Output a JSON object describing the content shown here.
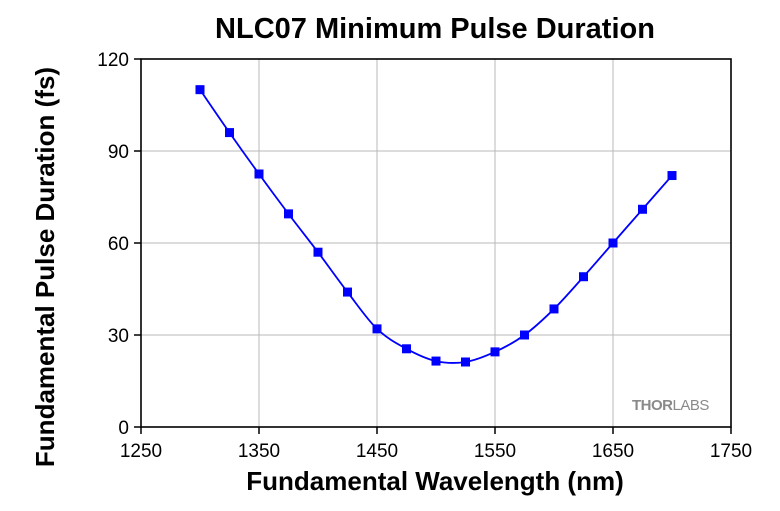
{
  "chart_data": {
    "type": "line",
    "title": "NLC07 Minimum Pulse Duration",
    "xlabel": "Fundamental Wavelength (nm)",
    "ylabel": "Fundamental Pulse Duration (fs)",
    "xlim": [
      1250,
      1750
    ],
    "ylim": [
      0,
      120
    ],
    "xticks": [
      1250,
      1350,
      1450,
      1550,
      1650,
      1750
    ],
    "yticks": [
      0,
      30,
      60,
      90,
      120
    ],
    "grid": true,
    "legend": "none",
    "series": [
      {
        "color": "#0000ff",
        "marker": "square",
        "smooth": true,
        "x": [
          1300,
          1325,
          1350,
          1375,
          1400,
          1425,
          1450,
          1475,
          1500,
          1525,
          1550,
          1575,
          1600,
          1625,
          1650,
          1675,
          1700
        ],
        "y": [
          110,
          96,
          82.5,
          69.5,
          57,
          44,
          32,
          25.5,
          21.5,
          21.2,
          24.5,
          30,
          38.5,
          49,
          60,
          71,
          82
        ]
      }
    ]
  },
  "watermark": {
    "part1": "THOR",
    "part2": "LABS"
  }
}
